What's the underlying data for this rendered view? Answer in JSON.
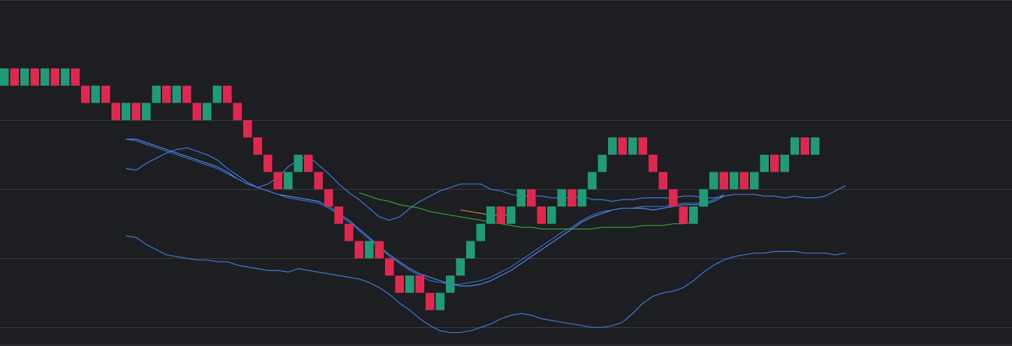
{
  "colors": {
    "background": "#1d1e22",
    "grid": "#3a3c43",
    "up_brick": "#1f9b77",
    "down_brick": "#e0284f",
    "bollinger_band": "#3b7fe0",
    "moving_average_1": "#4a90f0",
    "moving_average_2": "#38c039",
    "moving_average_3": "#e6a01e"
  },
  "chart_data": {
    "type": "renko",
    "brick_size": 1,
    "grid": "horizontal",
    "axes_visible": false,
    "gridline_levels": [
      13,
      9,
      5,
      1
    ],
    "bricks": [
      {
        "dir": "up",
        "close": 16
      },
      {
        "dir": "down",
        "close": 15
      },
      {
        "dir": "up",
        "close": 16
      },
      {
        "dir": "down",
        "close": 15
      },
      {
        "dir": "up",
        "close": 16
      },
      {
        "dir": "down",
        "close": 15
      },
      {
        "dir": "up",
        "close": 16
      },
      {
        "dir": "down",
        "close": 15
      },
      {
        "dir": "down",
        "close": 14
      },
      {
        "dir": "up",
        "close": 15
      },
      {
        "dir": "down",
        "close": 14
      },
      {
        "dir": "down",
        "close": 13
      },
      {
        "dir": "up",
        "close": 14
      },
      {
        "dir": "down",
        "close": 13
      },
      {
        "dir": "up",
        "close": 14
      },
      {
        "dir": "up",
        "close": 15
      },
      {
        "dir": "down",
        "close": 14
      },
      {
        "dir": "up",
        "close": 15
      },
      {
        "dir": "down",
        "close": 14
      },
      {
        "dir": "down",
        "close": 13
      },
      {
        "dir": "up",
        "close": 14
      },
      {
        "dir": "up",
        "close": 15
      },
      {
        "dir": "down",
        "close": 14
      },
      {
        "dir": "down",
        "close": 13
      },
      {
        "dir": "down",
        "close": 12
      },
      {
        "dir": "down",
        "close": 11
      },
      {
        "dir": "down",
        "close": 10
      },
      {
        "dir": "down",
        "close": 9
      },
      {
        "dir": "up",
        "close": 10
      },
      {
        "dir": "up",
        "close": 11
      },
      {
        "dir": "down",
        "close": 10
      },
      {
        "dir": "down",
        "close": 9
      },
      {
        "dir": "down",
        "close": 8
      },
      {
        "dir": "down",
        "close": 7
      },
      {
        "dir": "down",
        "close": 6
      },
      {
        "dir": "down",
        "close": 5
      },
      {
        "dir": "up",
        "close": 6
      },
      {
        "dir": "down",
        "close": 5
      },
      {
        "dir": "down",
        "close": 4
      },
      {
        "dir": "down",
        "close": 3
      },
      {
        "dir": "up",
        "close": 4
      },
      {
        "dir": "down",
        "close": 3
      },
      {
        "dir": "down",
        "close": 2
      },
      {
        "dir": "up",
        "close": 3
      },
      {
        "dir": "up",
        "close": 4
      },
      {
        "dir": "up",
        "close": 5
      },
      {
        "dir": "up",
        "close": 6
      },
      {
        "dir": "up",
        "close": 7
      },
      {
        "dir": "up",
        "close": 8
      },
      {
        "dir": "down",
        "close": 7
      },
      {
        "dir": "up",
        "close": 8
      },
      {
        "dir": "up",
        "close": 9
      },
      {
        "dir": "down",
        "close": 8
      },
      {
        "dir": "down",
        "close": 7
      },
      {
        "dir": "up",
        "close": 8
      },
      {
        "dir": "up",
        "close": 9
      },
      {
        "dir": "down",
        "close": 8
      },
      {
        "dir": "up",
        "close": 9
      },
      {
        "dir": "up",
        "close": 10
      },
      {
        "dir": "up",
        "close": 11
      },
      {
        "dir": "up",
        "close": 12
      },
      {
        "dir": "down",
        "close": 11
      },
      {
        "dir": "up",
        "close": 12
      },
      {
        "dir": "down",
        "close": 11
      },
      {
        "dir": "down",
        "close": 10
      },
      {
        "dir": "down",
        "close": 9
      },
      {
        "dir": "down",
        "close": 8
      },
      {
        "dir": "down",
        "close": 7
      },
      {
        "dir": "up",
        "close": 8
      },
      {
        "dir": "up",
        "close": 9
      },
      {
        "dir": "up",
        "close": 10
      },
      {
        "dir": "down",
        "close": 9
      },
      {
        "dir": "up",
        "close": 10
      },
      {
        "dir": "down",
        "close": 9
      },
      {
        "dir": "up",
        "close": 10
      },
      {
        "dir": "up",
        "close": 11
      },
      {
        "dir": "down",
        "close": 10
      },
      {
        "dir": "up",
        "close": 11
      },
      {
        "dir": "up",
        "close": 12
      },
      {
        "dir": "down",
        "close": 11
      },
      {
        "dir": "up",
        "close": 12
      }
    ],
    "bollinger_upper": [
      [
        12,
        10.2
      ],
      [
        13,
        10.1
      ],
      [
        14,
        10.5
      ],
      [
        15,
        10.8
      ],
      [
        16,
        11.1
      ],
      [
        17,
        11.3
      ],
      [
        18,
        11.4
      ],
      [
        19,
        11.2
      ],
      [
        20,
        11.0
      ],
      [
        21,
        10.7
      ],
      [
        22,
        10.2
      ],
      [
        23,
        9.8
      ],
      [
        24,
        9.4
      ],
      [
        25,
        9.1
      ],
      [
        26,
        9.3
      ],
      [
        27,
        9.7
      ],
      [
        28,
        10.3
      ],
      [
        29,
        10.7
      ],
      [
        30,
        10.9
      ],
      [
        31,
        10.4
      ],
      [
        32,
        9.9
      ],
      [
        33,
        9.3
      ],
      [
        34,
        8.8
      ],
      [
        35,
        8.4
      ],
      [
        36,
        7.9
      ],
      [
        37,
        7.4
      ],
      [
        38,
        7.2
      ],
      [
        39,
        7.4
      ],
      [
        40,
        7.9
      ],
      [
        41,
        8.3
      ],
      [
        42,
        8.6
      ],
      [
        43,
        8.9
      ],
      [
        44,
        9.1
      ],
      [
        45,
        9.3
      ],
      [
        46,
        9.3
      ],
      [
        47,
        9.3
      ],
      [
        48,
        9.0
      ],
      [
        49,
        8.9
      ],
      [
        50,
        8.7
      ],
      [
        51,
        8.6
      ],
      [
        52,
        8.6
      ],
      [
        53,
        8.6
      ],
      [
        54,
        8.5
      ],
      [
        55,
        8.5
      ],
      [
        56,
        8.5
      ],
      [
        57,
        8.6
      ],
      [
        58,
        8.4
      ],
      [
        59,
        8.4
      ],
      [
        60,
        8.3
      ],
      [
        61,
        8.4
      ],
      [
        62,
        8.4
      ],
      [
        63,
        8.5
      ],
      [
        64,
        8.5
      ],
      [
        65,
        8.5
      ],
      [
        66,
        8.5
      ],
      [
        67,
        8.6
      ],
      [
        68,
        8.6
      ],
      [
        69,
        8.5
      ],
      [
        70,
        8.5
      ],
      [
        71,
        8.6
      ],
      [
        72,
        8.7
      ],
      [
        73,
        8.7
      ],
      [
        74,
        8.7
      ],
      [
        75,
        8.6
      ],
      [
        76,
        8.6
      ],
      [
        77,
        8.5
      ],
      [
        78,
        8.6
      ],
      [
        79,
        8.5
      ],
      [
        80,
        8.5
      ],
      [
        81,
        8.6
      ],
      [
        82,
        8.9
      ],
      [
        83,
        9.2
      ]
    ],
    "bollinger_lower": [
      [
        12,
        6.3
      ],
      [
        13,
        6.2
      ],
      [
        14,
        5.8
      ],
      [
        15,
        5.5
      ],
      [
        16,
        5.2
      ],
      [
        17,
        5.1
      ],
      [
        18,
        5.0
      ],
      [
        19,
        4.9
      ],
      [
        20,
        4.9
      ],
      [
        21,
        4.8
      ],
      [
        22,
        4.8
      ],
      [
        23,
        4.6
      ],
      [
        24,
        4.5
      ],
      [
        25,
        4.4
      ],
      [
        26,
        4.3
      ],
      [
        27,
        4.3
      ],
      [
        28,
        4.2
      ],
      [
        29,
        4.4
      ],
      [
        30,
        4.3
      ],
      [
        31,
        4.2
      ],
      [
        32,
        4.1
      ],
      [
        33,
        4.0
      ],
      [
        34,
        3.9
      ],
      [
        35,
        3.8
      ],
      [
        36,
        3.6
      ],
      [
        37,
        3.3
      ],
      [
        38,
        2.9
      ],
      [
        39,
        2.4
      ],
      [
        40,
        2.0
      ],
      [
        41,
        1.5
      ],
      [
        42,
        1.1
      ],
      [
        43,
        0.8
      ],
      [
        44,
        0.7
      ],
      [
        45,
        0.7
      ],
      [
        46,
        0.8
      ],
      [
        47,
        1.0
      ],
      [
        48,
        1.2
      ],
      [
        49,
        1.5
      ],
      [
        50,
        1.7
      ],
      [
        51,
        1.8
      ],
      [
        52,
        1.7
      ],
      [
        53,
        1.5
      ],
      [
        54,
        1.4
      ],
      [
        55,
        1.3
      ],
      [
        56,
        1.2
      ],
      [
        57,
        1.1
      ],
      [
        58,
        1.0
      ],
      [
        59,
        1.0
      ],
      [
        60,
        1.1
      ],
      [
        61,
        1.3
      ],
      [
        62,
        1.8
      ],
      [
        63,
        2.4
      ],
      [
        64,
        2.8
      ],
      [
        65,
        3.0
      ],
      [
        66,
        3.1
      ],
      [
        67,
        3.3
      ],
      [
        68,
        3.7
      ],
      [
        69,
        4.2
      ],
      [
        70,
        4.6
      ],
      [
        71,
        4.9
      ],
      [
        72,
        5.1
      ],
      [
        73,
        5.2
      ],
      [
        74,
        5.3
      ],
      [
        75,
        5.3
      ],
      [
        76,
        5.4
      ],
      [
        77,
        5.4
      ],
      [
        78,
        5.4
      ],
      [
        79,
        5.3
      ],
      [
        80,
        5.3
      ],
      [
        81,
        5.3
      ],
      [
        82,
        5.2
      ],
      [
        83,
        5.3
      ]
    ],
    "moving_average_1": [
      [
        12,
        11.9
      ],
      [
        13,
        11.9
      ],
      [
        14,
        11.7
      ],
      [
        15,
        11.5
      ],
      [
        16,
        11.3
      ],
      [
        17,
        11.1
      ],
      [
        18,
        10.9
      ],
      [
        19,
        10.7
      ],
      [
        20,
        10.5
      ],
      [
        21,
        10.3
      ],
      [
        22,
        10.0
      ],
      [
        23,
        9.6
      ],
      [
        24,
        9.3
      ],
      [
        25,
        9.1
      ],
      [
        26,
        8.9
      ],
      [
        27,
        8.7
      ],
      [
        28,
        8.6
      ],
      [
        29,
        8.5
      ],
      [
        30,
        8.4
      ],
      [
        31,
        8.3
      ],
      [
        32,
        8.0
      ],
      [
        33,
        7.6
      ],
      [
        34,
        7.2
      ],
      [
        35,
        6.7
      ],
      [
        36,
        6.2
      ],
      [
        37,
        5.7
      ],
      [
        38,
        5.2
      ],
      [
        39,
        4.8
      ],
      [
        40,
        4.4
      ],
      [
        41,
        4.1
      ],
      [
        42,
        3.9
      ],
      [
        43,
        3.7
      ],
      [
        44,
        3.5
      ],
      [
        45,
        3.4
      ],
      [
        46,
        3.4
      ],
      [
        47,
        3.5
      ],
      [
        48,
        3.7
      ],
      [
        49,
        4.0
      ],
      [
        50,
        4.3
      ],
      [
        51,
        4.7
      ],
      [
        52,
        5.1
      ],
      [
        53,
        5.5
      ],
      [
        54,
        5.9
      ],
      [
        55,
        6.3
      ],
      [
        56,
        6.7
      ],
      [
        57,
        7.1
      ],
      [
        58,
        7.4
      ],
      [
        59,
        7.6
      ],
      [
        60,
        7.8
      ],
      [
        61,
        7.9
      ],
      [
        62,
        7.9
      ],
      [
        63,
        7.9
      ],
      [
        64,
        7.8
      ],
      [
        65,
        7.9
      ],
      [
        66,
        8.0
      ],
      [
        67,
        8.1
      ],
      [
        68,
        8.1
      ],
      [
        69,
        8.1
      ],
      [
        70,
        8.3
      ],
      [
        71,
        8.6
      ]
    ],
    "moving_average_2": [
      [
        12,
        11.9
      ],
      [
        13,
        11.8
      ],
      [
        14,
        11.6
      ],
      [
        15,
        11.4
      ],
      [
        16,
        11.2
      ],
      [
        17,
        11.0
      ],
      [
        18,
        10.8
      ],
      [
        19,
        10.6
      ],
      [
        20,
        10.4
      ],
      [
        21,
        10.2
      ],
      [
        22,
        9.9
      ],
      [
        23,
        9.6
      ],
      [
        24,
        9.3
      ],
      [
        25,
        9.1
      ],
      [
        26,
        8.9
      ],
      [
        27,
        8.7
      ],
      [
        28,
        8.5
      ],
      [
        29,
        8.4
      ],
      [
        30,
        8.3
      ],
      [
        31,
        8.2
      ],
      [
        32,
        7.9
      ],
      [
        33,
        7.5
      ],
      [
        34,
        7.1
      ],
      [
        35,
        6.6
      ],
      [
        36,
        6.1
      ],
      [
        37,
        5.6
      ],
      [
        38,
        5.1
      ],
      [
        39,
        4.7
      ],
      [
        40,
        4.3
      ],
      [
        41,
        4.0
      ],
      [
        42,
        3.7
      ],
      [
        43,
        3.6
      ],
      [
        44,
        3.5
      ],
      [
        45,
        3.5
      ],
      [
        46,
        3.6
      ],
      [
        47,
        3.7
      ],
      [
        48,
        3.9
      ],
      [
        49,
        4.2
      ],
      [
        50,
        4.5
      ],
      [
        51,
        4.9
      ],
      [
        52,
        5.3
      ],
      [
        53,
        5.7
      ],
      [
        54,
        6.1
      ],
      [
        55,
        6.5
      ],
      [
        56,
        6.8
      ],
      [
        57,
        7.2
      ],
      [
        58,
        7.5
      ],
      [
        59,
        7.7
      ],
      [
        60,
        7.8
      ],
      [
        61,
        7.9
      ],
      [
        62,
        7.9
      ],
      [
        63,
        8.0
      ],
      [
        64,
        8.0
      ],
      [
        65,
        8.0
      ],
      [
        66,
        8.1
      ],
      [
        67,
        8.2
      ],
      [
        68,
        8.2
      ],
      [
        69,
        8.2
      ],
      [
        70,
        8.4
      ],
      [
        71,
        8.7
      ]
    ],
    "moving_average_3": [
      [
        35,
        8.8
      ],
      [
        36,
        8.6
      ],
      [
        37,
        8.4
      ],
      [
        38,
        8.3
      ],
      [
        39,
        8.1
      ],
      [
        40,
        8.0
      ],
      [
        41,
        7.9
      ],
      [
        42,
        7.7
      ],
      [
        43,
        7.6
      ],
      [
        44,
        7.5
      ],
      [
        45,
        7.4
      ],
      [
        46,
        7.3
      ],
      [
        47,
        7.2
      ],
      [
        48,
        7.1
      ],
      [
        49,
        7.0
      ],
      [
        50,
        6.9
      ],
      [
        51,
        6.8
      ],
      [
        52,
        6.8
      ],
      [
        53,
        6.7
      ],
      [
        54,
        6.7
      ],
      [
        55,
        6.7
      ],
      [
        56,
        6.7
      ],
      [
        57,
        6.7
      ],
      [
        58,
        6.7
      ],
      [
        59,
        6.8
      ],
      [
        60,
        6.8
      ],
      [
        61,
        6.8
      ],
      [
        62,
        6.8
      ],
      [
        63,
        6.9
      ],
      [
        64,
        6.9
      ],
      [
        65,
        6.9
      ],
      [
        66,
        7.0
      ],
      [
        67,
        7.0
      ],
      [
        68,
        7.1
      ]
    ],
    "moving_average_4": [
      [
        45,
        7.8
      ],
      [
        46,
        7.7
      ],
      [
        47,
        7.6
      ],
      [
        48,
        7.5
      ],
      [
        49,
        7.5
      ],
      [
        50,
        7.5
      ]
    ]
  }
}
